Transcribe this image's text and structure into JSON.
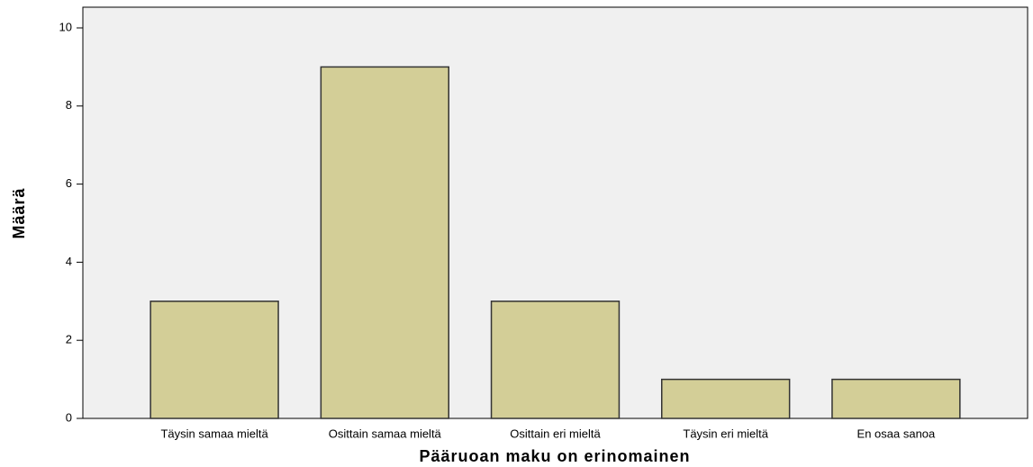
{
  "chart_data": {
    "type": "bar",
    "x_label": "Pääruoan maku on erinomainen",
    "y_label": "Määrä",
    "categories": [
      "Täysin samaa mieltä",
      "Osittain samaa mieltä",
      "Osittain eri mieltä",
      "Täysin eri mieltä",
      "En osaa sanoa"
    ],
    "values": [
      3,
      9,
      3,
      1,
      1
    ],
    "color": "#d3ce97",
    "ylim": [
      0,
      10.53
    ],
    "yticks": [
      0,
      2,
      4,
      6,
      8,
      10
    ],
    "grid": false
  }
}
